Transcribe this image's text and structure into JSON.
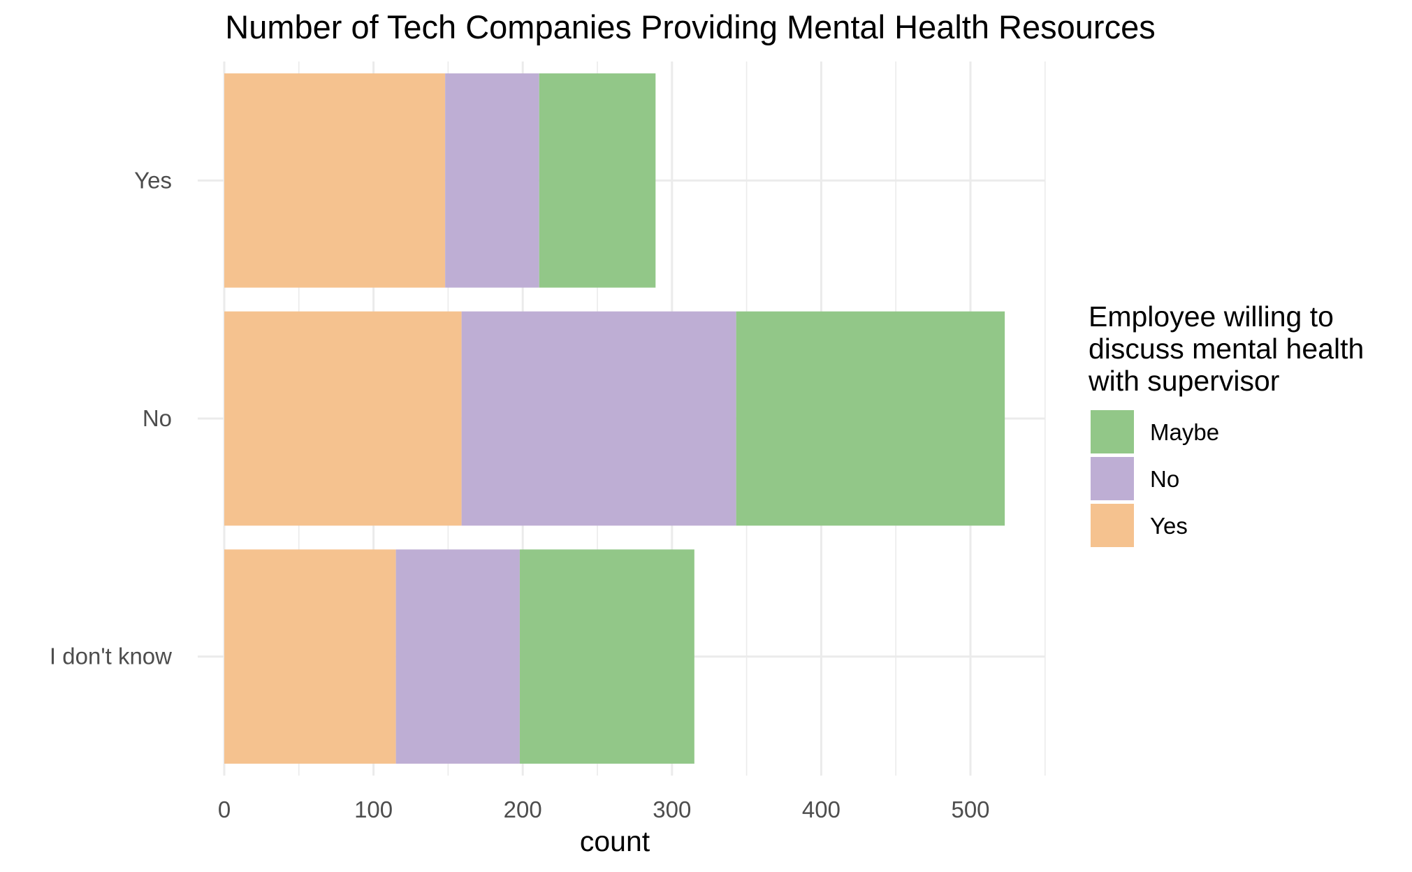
{
  "chart_data": {
    "type": "bar",
    "orientation": "horizontal",
    "stacked": true,
    "title": "Number of Tech Companies Providing Mental Health Resources",
    "xlabel": "count",
    "ylabel": "",
    "xlim": [
      0,
      550
    ],
    "x_ticks": [
      0,
      100,
      200,
      300,
      400,
      500
    ],
    "categories": [
      "I don't know",
      "No",
      "Yes"
    ],
    "series": [
      {
        "name": "Yes",
        "color": "#f5c28f",
        "values": [
          115,
          159,
          148
        ]
      },
      {
        "name": "No",
        "color": "#beaed4",
        "values": [
          83,
          184,
          63
        ]
      },
      {
        "name": "Maybe",
        "color": "#92c788",
        "values": [
          117,
          180,
          78
        ]
      }
    ],
    "legend": {
      "title_lines": [
        "Employee willing to",
        "discuss mental health",
        "with supervisor"
      ],
      "order": [
        "Maybe",
        "No",
        "Yes"
      ],
      "placement": "right"
    },
    "grid": true
  }
}
